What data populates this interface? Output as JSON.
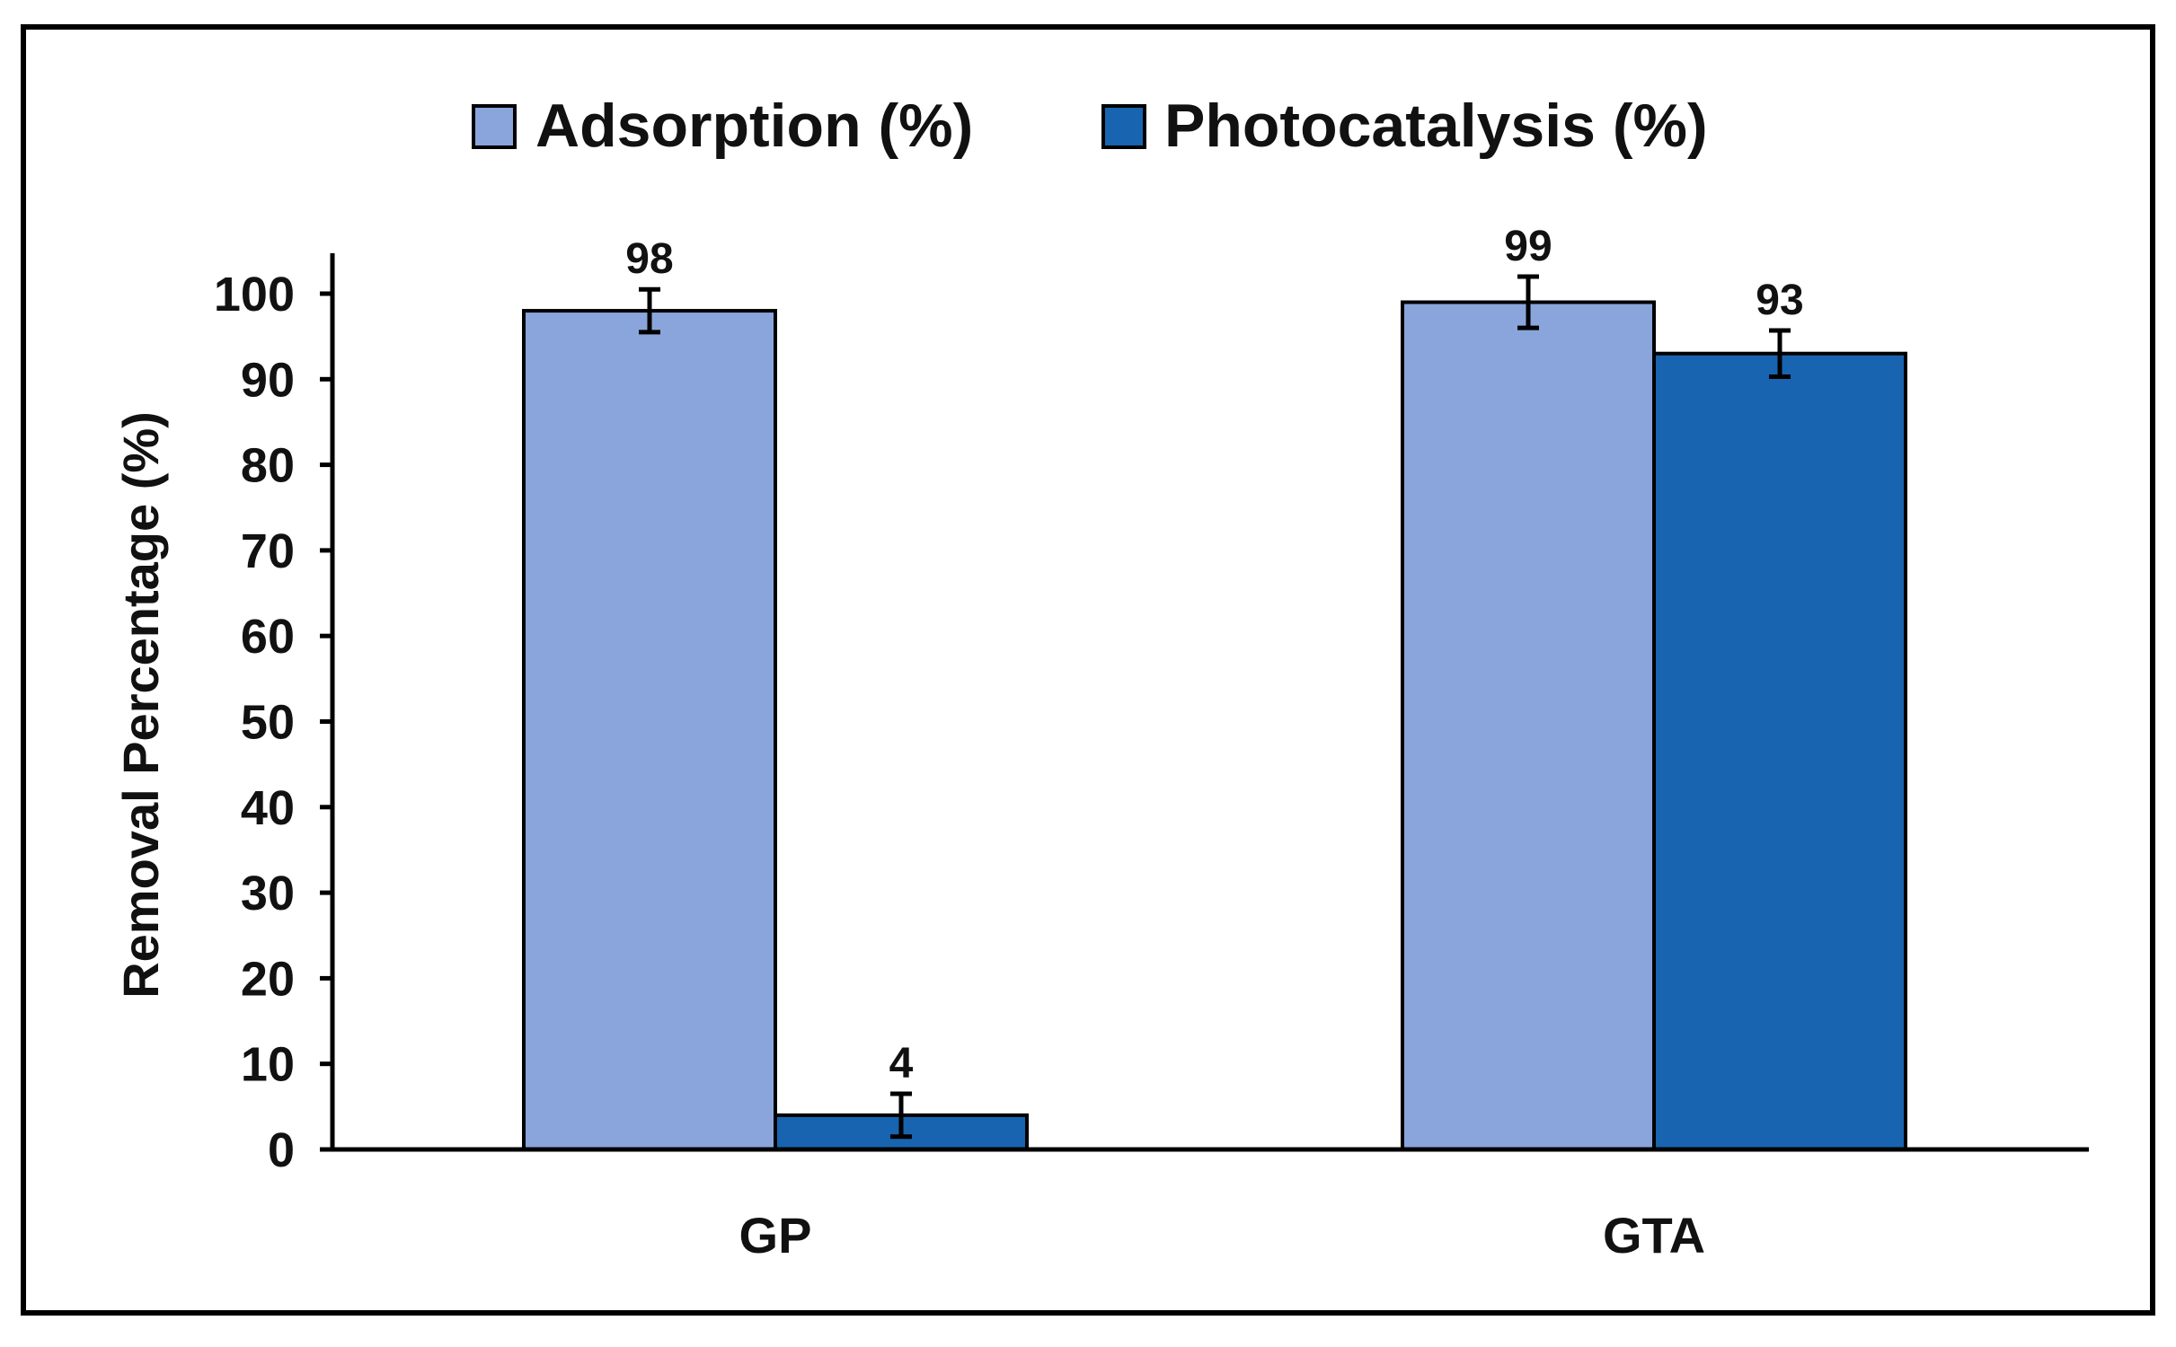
{
  "chart_data": {
    "type": "bar",
    "title": "",
    "xlabel": "",
    "ylabel": "Removal Percentage (%)",
    "categories": [
      "GP",
      "GTA"
    ],
    "series": [
      {
        "name": "Adsorption (%)",
        "color": "#8aa5dc",
        "values": [
          98,
          99
        ],
        "errors": [
          2.5,
          3
        ],
        "labels": [
          "98",
          "99"
        ]
      },
      {
        "name": "Photocatalysis (%)",
        "color": "#1864b0",
        "values": [
          4,
          93
        ],
        "errors": [
          2.5,
          2.7
        ],
        "labels": [
          "4",
          "93"
        ]
      }
    ],
    "ylim": [
      0,
      100
    ],
    "yticks": [
      0,
      10,
      20,
      30,
      40,
      50,
      60,
      70,
      80,
      90,
      100
    ],
    "ytick_labels": [
      "0",
      "10",
      "20",
      "30",
      "40",
      "50",
      "60",
      "70",
      "80",
      "90",
      "100"
    ],
    "grid": false,
    "legend_position": "top-center",
    "data_labels": true,
    "error_bars": true
  }
}
